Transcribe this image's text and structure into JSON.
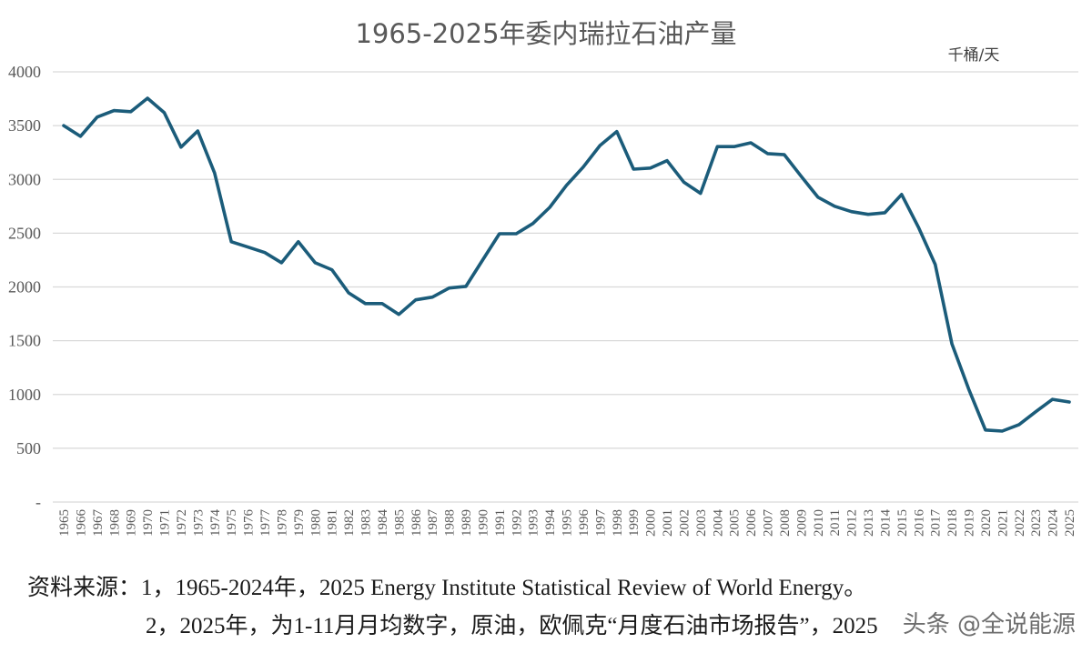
{
  "chart_data": {
    "type": "line",
    "title": "1965-2025年委内瑞拉石油产量",
    "unit_label": "千桶/天",
    "xlabel": "",
    "ylabel": "千桶/天",
    "ylim": [
      0,
      4000
    ],
    "yticks": [
      0,
      500,
      1000,
      1500,
      2000,
      2500,
      3000,
      3500,
      4000
    ],
    "ytick_labels": [
      "-",
      "500",
      "1000",
      "1500",
      "2000",
      "2500",
      "3000",
      "3500",
      "4000"
    ],
    "grid": true,
    "legend": "none",
    "categories": [
      "1965",
      "1966",
      "1967",
      "1968",
      "1969",
      "1970",
      "1971",
      "1972",
      "1973",
      "1974",
      "1975",
      "1976",
      "1977",
      "1978",
      "1979",
      "1980",
      "1981",
      "1982",
      "1983",
      "1984",
      "1985",
      "1986",
      "1987",
      "1988",
      "1989",
      "1990",
      "1991",
      "1992",
      "1993",
      "1994",
      "1995",
      "1996",
      "1997",
      "1998",
      "1999",
      "2000",
      "2001",
      "2002",
      "2003",
      "2004",
      "2005",
      "2006",
      "2007",
      "2008",
      "2009",
      "2010",
      "2011",
      "2012",
      "2013",
      "2014",
      "2015",
      "2016",
      "2017",
      "2018",
      "2019",
      "2020",
      "2021",
      "2022",
      "2023",
      "2024",
      "2025"
    ],
    "series": [
      {
        "name": "委内瑞拉石油产量",
        "color": "#1b5c7a",
        "values": [
          3500,
          3400,
          3580,
          3640,
          3630,
          3755,
          3620,
          3300,
          3450,
          3060,
          2420,
          2370,
          2320,
          2225,
          2420,
          2225,
          2160,
          1945,
          1845,
          1845,
          1745,
          1880,
          1905,
          1990,
          2005,
          2250,
          2495,
          2495,
          2590,
          2740,
          2945,
          3115,
          3315,
          3445,
          3095,
          3105,
          3175,
          2975,
          2870,
          3305,
          3305,
          3340,
          3240,
          3230,
          3030,
          2835,
          2750,
          2700,
          2675,
          2690,
          2860,
          2555,
          2210,
          1470,
          1050,
          670,
          660,
          720,
          840,
          955,
          930
        ]
      }
    ]
  },
  "notes": {
    "line1": "资料来源：1，1965-2024年，2025 Energy Institute Statistical Review of World Energy。",
    "line2": "2，2025年，为1-11月月均数字，原油，欧佩克“月度石油市场报告”，2025"
  },
  "watermark": "头条 @全说能源"
}
